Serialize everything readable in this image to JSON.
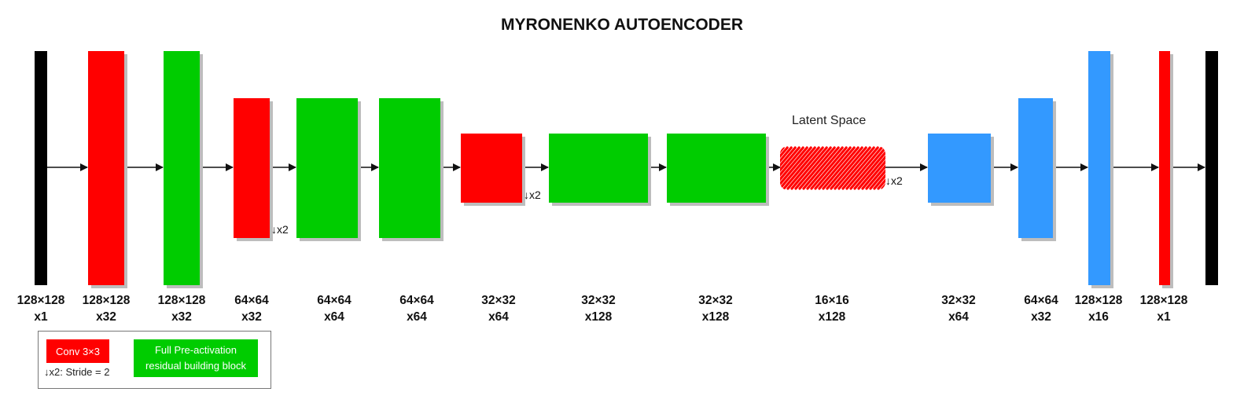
{
  "title": "MYRONENKO AUTOENCODER",
  "latent_label": "Latent Space",
  "stride_label": "↓x2",
  "colors": {
    "conv": "#ff0000",
    "residual": "#00cc00",
    "decoder": "#3399ff",
    "io": "#000000",
    "arrow": "#111111"
  },
  "layers": [
    {
      "id": "input",
      "type": "io",
      "size": "128×128",
      "channels": "x1"
    },
    {
      "id": "conv1",
      "type": "conv",
      "size": "128×128",
      "channels": "x32"
    },
    {
      "id": "res1",
      "type": "residual",
      "size": "128×128",
      "channels": "x32"
    },
    {
      "id": "conv2",
      "type": "conv",
      "size": "64×64",
      "channels": "x32",
      "stride": true
    },
    {
      "id": "res2",
      "type": "residual",
      "size": "64×64",
      "channels": "x64"
    },
    {
      "id": "res3",
      "type": "residual",
      "size": "64×64",
      "channels": "x64"
    },
    {
      "id": "conv3",
      "type": "conv",
      "size": "32×32",
      "channels": "x64",
      "stride": true
    },
    {
      "id": "res4",
      "type": "residual",
      "size": "32×32",
      "channels": "x128"
    },
    {
      "id": "res5",
      "type": "residual",
      "size": "32×32",
      "channels": "x128"
    },
    {
      "id": "latent",
      "type": "latent",
      "size": "16×16",
      "channels": "x128",
      "stride": true
    },
    {
      "id": "dec1",
      "type": "decoder",
      "size": "32×32",
      "channels": "x64"
    },
    {
      "id": "dec2",
      "type": "decoder",
      "size": "64×64",
      "channels": "x32"
    },
    {
      "id": "dec3",
      "type": "decoder",
      "size": "128×128",
      "channels": "x16"
    },
    {
      "id": "conv-out",
      "type": "conv",
      "size": "128×128",
      "channels": "x1"
    },
    {
      "id": "output",
      "type": "io",
      "size": "",
      "channels": ""
    }
  ],
  "legend": {
    "conv_label": "Conv 3×3",
    "stride_desc": "↓x2: Stride = 2",
    "res_line1": "Full Pre-activation",
    "res_line2": "residual building block"
  }
}
